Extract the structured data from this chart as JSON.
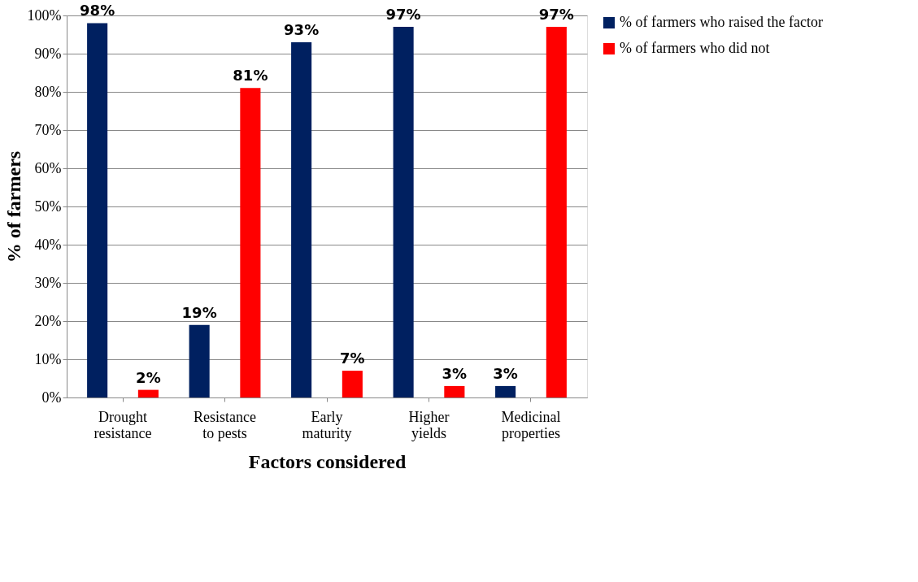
{
  "chart_data": {
    "type": "bar",
    "xlabel": "Factors considered",
    "ylabel": "% of farmers",
    "categories": [
      "Drought resistance",
      "Resistance to pests",
      "Early maturity",
      "Higher yields",
      "Medicinal properties"
    ],
    "series": [
      {
        "name": "% of farmers who raised the factor",
        "color": "#002060",
        "values": [
          98,
          19,
          93,
          97,
          3
        ],
        "value_labels": [
          "98%",
          "19%",
          "93%",
          "97%",
          "3%"
        ]
      },
      {
        "name": "% of farmers who did not",
        "color": "#ff0000",
        "values": [
          2,
          81,
          7,
          3,
          97
        ],
        "value_labels": [
          "2%",
          "81%",
          "7%",
          "3%",
          "97%"
        ]
      }
    ],
    "ylim": [
      0,
      100
    ],
    "yticks": [
      {
        "value": 0,
        "label": "0%"
      },
      {
        "value": 10,
        "label": "10%"
      },
      {
        "value": 20,
        "label": "20%"
      },
      {
        "value": 30,
        "label": "30%"
      },
      {
        "value": 40,
        "label": "40%"
      },
      {
        "value": 50,
        "label": "50%"
      },
      {
        "value": 60,
        "label": "60%"
      },
      {
        "value": 70,
        "label": "70%"
      },
      {
        "value": 80,
        "label": "80%"
      },
      {
        "value": 90,
        "label": "90%"
      },
      {
        "value": 100,
        "label": "100%"
      }
    ],
    "grid": "y",
    "legend": "right"
  }
}
